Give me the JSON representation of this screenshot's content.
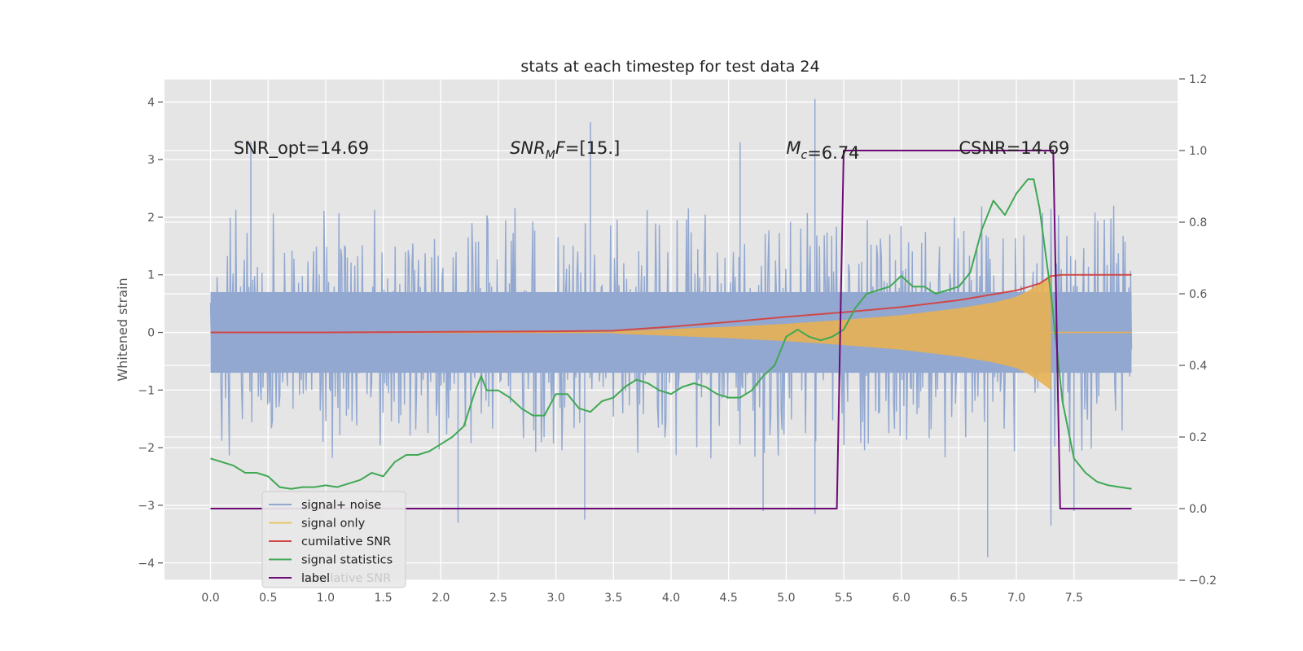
{
  "chart_data": {
    "type": "line",
    "title": "stats at each timestep for test data 24",
    "ylabel": "Whitened strain",
    "xlim": [
      -0.4,
      8.4
    ],
    "ylim": [
      -4.3,
      4.4
    ],
    "y2lim": [
      -0.2,
      1.2
    ],
    "xticks": [
      0.0,
      0.5,
      1.0,
      1.5,
      2.0,
      2.5,
      3.0,
      3.5,
      4.0,
      4.5,
      5.0,
      5.5,
      6.0,
      6.5,
      7.0,
      7.5
    ],
    "xtick_labels": [
      "0.0",
      "0.5",
      "1.0",
      "1.5",
      "2.0",
      "2.5",
      "3.0",
      "3.5",
      "4.0",
      "4.5",
      "5.0",
      "5.5",
      "6.0",
      "6.5",
      "7.0",
      "7.5"
    ],
    "yticks": [
      -4,
      -3,
      -2,
      -1,
      0,
      1,
      2,
      3,
      4
    ],
    "ytick_labels": [
      "−4",
      "−3",
      "−2",
      "−1",
      "0",
      "1",
      "2",
      "3",
      "4"
    ],
    "y2ticks": [
      -0.2,
      0.0,
      0.2,
      0.4,
      0.6,
      0.8,
      1.0,
      1.2
    ],
    "y2tick_labels": [
      "−0.2",
      "0.0",
      "0.2",
      "0.4",
      "0.6",
      "0.8",
      "1.0",
      "1.2"
    ],
    "grid": true,
    "legend_position": "lower-left",
    "annotations": [
      {
        "text": "SNR_opt=14.69",
        "x": 0.2,
        "y": 3.2
      },
      {
        "text": "SNR_MF=[15.]",
        "x": 2.6,
        "y": 3.2,
        "math": true
      },
      {
        "text": "M_c=6.74",
        "x": 5.0,
        "y": 3.2,
        "math": true
      },
      {
        "text": "CSNR=14.69",
        "x": 6.5,
        "y": 3.2
      }
    ],
    "series": [
      {
        "name": "signal+ noise",
        "axis": "left",
        "style": "dense-noise",
        "color": "#92a8d1",
        "x_range": [
          0.0,
          8.0
        ],
        "envelope_y": [
          -1.4,
          1.4
        ],
        "extreme_peaks": [
          [
            0.35,
            3.3
          ],
          [
            3.3,
            3.65
          ],
          [
            5.25,
            4.05
          ],
          [
            4.6,
            3.3
          ],
          [
            2.15,
            -3.3
          ],
          [
            3.25,
            -3.25
          ],
          [
            6.75,
            -3.9
          ],
          [
            7.3,
            -3.35
          ],
          [
            5.25,
            -3.15
          ],
          [
            4.8,
            -3.1
          ],
          [
            7.5,
            -3.1
          ]
        ]
      },
      {
        "name": "signal only",
        "axis": "left",
        "style": "chirp",
        "color": "#e8b050",
        "x": [
          3.5,
          4.0,
          4.5,
          5.0,
          5.5,
          6.0,
          6.5,
          6.8,
          7.0,
          7.1,
          7.2,
          7.3
        ],
        "amplitude": [
          0.02,
          0.06,
          0.1,
          0.15,
          0.22,
          0.3,
          0.42,
          0.52,
          0.62,
          0.72,
          0.85,
          1.0
        ],
        "flat_after": [
          7.3,
          8.0
        ]
      },
      {
        "name": "cumilative SNR",
        "axis": "left",
        "color": "#d04848",
        "x": [
          0.0,
          1.0,
          2.0,
          3.0,
          3.5,
          4.0,
          4.5,
          5.0,
          5.5,
          6.0,
          6.5,
          7.0,
          7.2,
          7.3,
          7.4,
          8.0
        ],
        "y": [
          0.0,
          0.0,
          0.01,
          0.02,
          0.03,
          0.1,
          0.18,
          0.27,
          0.35,
          0.44,
          0.56,
          0.73,
          0.85,
          0.98,
          1.0,
          1.0
        ]
      },
      {
        "name": "signal statistics",
        "axis": "right",
        "color": "#3fa853",
        "x": [
          0.0,
          0.1,
          0.2,
          0.3,
          0.4,
          0.5,
          0.6,
          0.7,
          0.8,
          0.9,
          1.0,
          1.1,
          1.2,
          1.3,
          1.4,
          1.5,
          1.6,
          1.7,
          1.8,
          1.9,
          2.0,
          2.1,
          2.2,
          2.3,
          2.35,
          2.4,
          2.5,
          2.6,
          2.7,
          2.8,
          2.9,
          3.0,
          3.1,
          3.2,
          3.3,
          3.4,
          3.5,
          3.6,
          3.7,
          3.8,
          3.9,
          4.0,
          4.1,
          4.2,
          4.3,
          4.4,
          4.5,
          4.6,
          4.7,
          4.8,
          4.9,
          5.0,
          5.1,
          5.2,
          5.3,
          5.4,
          5.5,
          5.6,
          5.7,
          5.8,
          5.9,
          6.0,
          6.1,
          6.2,
          6.3,
          6.4,
          6.5,
          6.6,
          6.7,
          6.8,
          6.9,
          7.0,
          7.1,
          7.15,
          7.2,
          7.3,
          7.4,
          7.5,
          7.6,
          7.7,
          7.8,
          7.9,
          8.0
        ],
        "y": [
          0.14,
          0.13,
          0.12,
          0.1,
          0.1,
          0.09,
          0.06,
          0.055,
          0.06,
          0.06,
          0.065,
          0.06,
          0.07,
          0.08,
          0.1,
          0.09,
          0.13,
          0.15,
          0.15,
          0.16,
          0.18,
          0.2,
          0.23,
          0.33,
          0.37,
          0.33,
          0.33,
          0.31,
          0.28,
          0.26,
          0.26,
          0.32,
          0.32,
          0.28,
          0.27,
          0.3,
          0.31,
          0.34,
          0.36,
          0.35,
          0.33,
          0.32,
          0.34,
          0.35,
          0.34,
          0.32,
          0.31,
          0.31,
          0.33,
          0.37,
          0.4,
          0.48,
          0.5,
          0.48,
          0.47,
          0.48,
          0.5,
          0.56,
          0.6,
          0.61,
          0.62,
          0.65,
          0.62,
          0.62,
          0.6,
          0.61,
          0.62,
          0.66,
          0.78,
          0.86,
          0.82,
          0.88,
          0.92,
          0.92,
          0.84,
          0.6,
          0.3,
          0.14,
          0.1,
          0.075,
          0.065,
          0.06,
          0.055
        ]
      },
      {
        "name": "label",
        "axis": "right",
        "color": "#6e0a78",
        "x": [
          0.0,
          5.44,
          5.5,
          7.32,
          7.38,
          8.0
        ],
        "y": [
          0.0,
          0.0,
          1.0,
          1.0,
          0.0,
          0.0
        ]
      }
    ],
    "legend_labels": [
      "signal+ noise",
      "signal only",
      "cumilative SNR",
      "signal statistics",
      "label"
    ],
    "ghost_legend_text": "cumilative SNR"
  }
}
